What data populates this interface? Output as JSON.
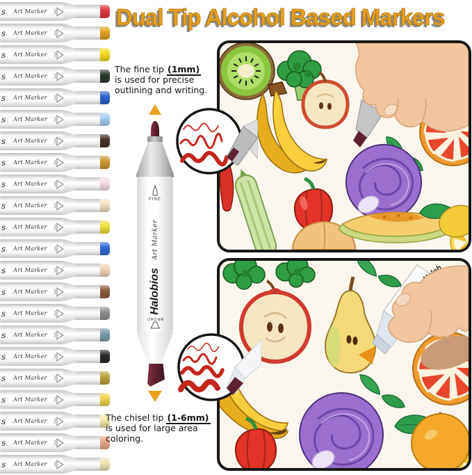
{
  "title": "Dual Tip Alcohol Based Markers",
  "notes": {
    "fine": {
      "intro": "The fine tip",
      "size": "(1mm)",
      "line2": "is used for precise",
      "line3": "outlining and writing."
    },
    "chisel": {
      "intro": "The chisel tip",
      "size": "(1-6mm)",
      "line2": "is used for large area",
      "line3": "coloring."
    }
  },
  "hero_marker": {
    "brand": "Halobios",
    "series": "Art Marker",
    "fine_label": "FINE",
    "broad_label": "BROAD"
  },
  "marker_row": {
    "barrel_text_end": "s",
    "series": "Art Marker",
    "tip_label": "Fine"
  },
  "left_marker_caps": [
    "#e03a40",
    "#e2a41f",
    "#f2da1c",
    "#2c3b2e",
    "#2f63cf",
    "#a9cef1",
    "#4a332a",
    "#c9992e",
    "#f6dde1",
    "#f2e0c2",
    "#efe13c",
    "#3467d8",
    "#f0d6ba",
    "#8d5c41",
    "#8e8e8e",
    "#7d9aa9",
    "#2b2b2b",
    "#b9a23a",
    "#eed34a",
    "#f3e9ab",
    "#eaa98d",
    "#f1e5b4"
  ],
  "panel_markers": {
    "top_series": "Art Marker",
    "bottom_brand_partial": "Halob"
  },
  "colors": {
    "title-gold": "#e7a01d",
    "title-shadow": "#8f8c86",
    "arrow-gold": "#eaa21f",
    "tip-maroon": "#5e2130",
    "ink-red": "#c8241a",
    "panel-bg": "#faf6ee",
    "panel-border": "#171717"
  }
}
